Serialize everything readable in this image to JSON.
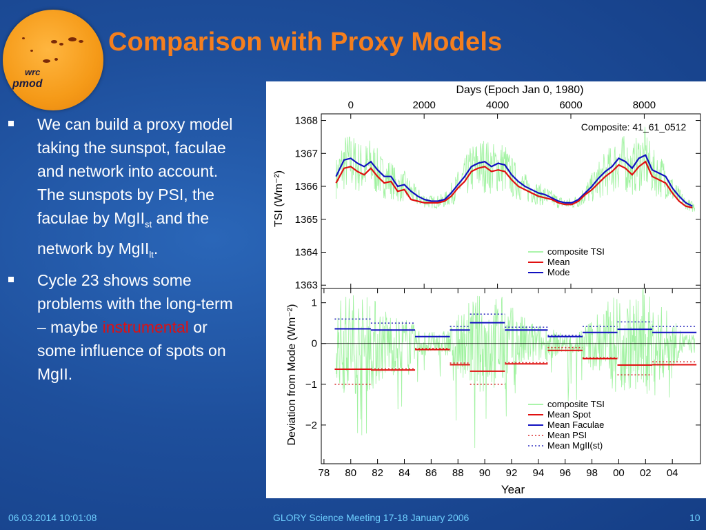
{
  "slide": {
    "title": "Comparison with Proxy Models",
    "logo_line1": "wrc",
    "logo_line2": "pmod",
    "bullet1_text": "We can build a proxy model taking the sunspot, faculae and network into account. The sunspots by PSI, the faculae by MgII",
    "bullet1_sub1": "st",
    "bullet1_mid": " and the network by MgII",
    "bullet1_sub2": "lt",
    "bullet1_end": ".",
    "bullet2_text": "Cycle 23 shows some problems with the long-term – maybe ",
    "bullet2_highlight": "instrumental",
    "bullet2_end": " or some influence of spots on MgII.",
    "footer_date": "06.03.2014 10:01:08",
    "footer_event": "GLORY Science Meeting 17-18 January 2006",
    "footer_page": "10",
    "colors": {
      "title": "#f57f1e",
      "text": "#ffffff",
      "highlight": "#e01010",
      "footer": "#6fd0ff"
    }
  },
  "chart_data": [
    {
      "type": "line",
      "panel": "top",
      "top_xlabel": "Days (Epoch Jan 0, 1980)",
      "top_ticks": [
        "0",
        "2000",
        "4000",
        "6000",
        "8000"
      ],
      "ylabel": "TSI (Wm⁻²)",
      "annotation": "Composite: 41_61_0512",
      "yticks": [
        "1368",
        "1367",
        "1366",
        "1365",
        "1364",
        "1363"
      ],
      "ylim": [
        1362.9,
        1368.2
      ],
      "xlim": [
        1977.8,
        2006.1
      ],
      "legend": [
        "composite TSI",
        "Mean",
        "Mode"
      ],
      "legend_position": "bottom-right",
      "colors": {
        "composite": "#8ef08e",
        "mean": "#e01010",
        "mode": "#1010c0"
      },
      "series": [
        {
          "name": "Mode",
          "x": [
            1978.9,
            1979.5,
            1980.0,
            1980.5,
            1981.0,
            1981.5,
            1982.0,
            1982.5,
            1983.0,
            1983.5,
            1984.0,
            1984.5,
            1985.0,
            1985.5,
            1986.0,
            1986.5,
            1987.0,
            1987.5,
            1988.0,
            1988.5,
            1989.0,
            1989.5,
            1990.0,
            1990.5,
            1991.0,
            1991.5,
            1992.0,
            1992.5,
            1993.0,
            1993.5,
            1994.0,
            1994.5,
            1995.0,
            1995.5,
            1996.0,
            1996.5,
            1997.0,
            1997.5,
            1998.0,
            1998.5,
            1999.0,
            1999.5,
            2000.0,
            2000.5,
            2001.0,
            2001.5,
            2002.0,
            2002.5,
            2003.0,
            2003.5,
            2004.0,
            2004.5,
            2005.0,
            2005.5
          ],
          "values": [
            1366.3,
            1366.8,
            1366.85,
            1366.7,
            1366.6,
            1366.75,
            1366.5,
            1366.3,
            1366.3,
            1366.0,
            1366.05,
            1365.85,
            1365.7,
            1365.6,
            1365.55,
            1365.55,
            1365.6,
            1365.8,
            1366.05,
            1366.3,
            1366.6,
            1366.7,
            1366.75,
            1366.6,
            1366.7,
            1366.65,
            1366.35,
            1366.15,
            1366.0,
            1365.9,
            1365.8,
            1365.75,
            1365.65,
            1365.55,
            1365.5,
            1365.5,
            1365.6,
            1365.8,
            1366.0,
            1366.25,
            1366.45,
            1366.6,
            1366.85,
            1366.75,
            1366.55,
            1366.85,
            1366.95,
            1366.5,
            1366.4,
            1366.3,
            1365.95,
            1365.7,
            1365.5,
            1365.4
          ]
        },
        {
          "name": "Mean",
          "x": [
            1978.9,
            1979.5,
            1980.0,
            1980.5,
            1981.0,
            1981.5,
            1982.0,
            1982.5,
            1983.0,
            1983.5,
            1984.0,
            1984.5,
            1985.0,
            1985.5,
            1986.0,
            1986.5,
            1987.0,
            1987.5,
            1988.0,
            1988.5,
            1989.0,
            1989.5,
            1990.0,
            1990.5,
            1991.0,
            1991.5,
            1992.0,
            1992.5,
            1993.0,
            1993.5,
            1994.0,
            1994.5,
            1995.0,
            1995.5,
            1996.0,
            1996.5,
            1997.0,
            1997.5,
            1998.0,
            1998.5,
            1999.0,
            1999.5,
            2000.0,
            2000.5,
            2001.0,
            2001.5,
            2002.0,
            2002.5,
            2003.0,
            2003.5,
            2004.0,
            2004.5,
            2005.0,
            2005.5
          ],
          "values": [
            1366.1,
            1366.55,
            1366.6,
            1366.45,
            1366.35,
            1366.55,
            1366.3,
            1366.1,
            1366.15,
            1365.85,
            1365.9,
            1365.6,
            1365.55,
            1365.5,
            1365.5,
            1365.5,
            1365.55,
            1365.7,
            1365.95,
            1366.15,
            1366.45,
            1366.55,
            1366.6,
            1366.45,
            1366.5,
            1366.45,
            1366.2,
            1366.0,
            1365.9,
            1365.8,
            1365.7,
            1365.65,
            1365.6,
            1365.5,
            1365.45,
            1365.45,
            1365.55,
            1365.75,
            1365.9,
            1366.1,
            1366.3,
            1366.45,
            1366.65,
            1366.55,
            1366.35,
            1366.6,
            1366.75,
            1366.3,
            1366.2,
            1366.1,
            1365.8,
            1365.55,
            1365.4,
            1365.35
          ]
        }
      ]
    },
    {
      "type": "line",
      "panel": "bottom",
      "ylabel": "Deviation from Mode (Wm⁻²)",
      "xlabel": "Year",
      "yticks": [
        "1",
        "0",
        "−1",
        "−2"
      ],
      "ylim": [
        -2.95,
        1.35
      ],
      "xlim": [
        1977.8,
        2006.1
      ],
      "xticks": [
        "78",
        "80",
        "82",
        "84",
        "86",
        "88",
        "90",
        "92",
        "94",
        "96",
        "98",
        "00",
        "02",
        "04"
      ],
      "legend": [
        "composite TSI",
        "Mean Spot",
        "Mean Faculae",
        "Mean PSI",
        "Mean MgII(st)"
      ],
      "legend_position": "bottom-right",
      "colors": {
        "composite": "#8ef08e",
        "spot": "#e01010",
        "faculae": "#1010c0",
        "psi": "#d83030",
        "mgii": "#3030c0"
      },
      "segments": [
        {
          "x0": 1978.8,
          "x1": 1981.5,
          "spot": -0.63,
          "faculae": 0.36,
          "psi": -1.0,
          "mgii": 0.6
        },
        {
          "x0": 1981.5,
          "x1": 1984.8,
          "spot": -0.65,
          "faculae": 0.33,
          "psi": -0.62,
          "mgii": 0.5
        },
        {
          "x0": 1984.8,
          "x1": 1987.4,
          "spot": -0.15,
          "faculae": 0.17,
          "psi": -0.12,
          "mgii": 0.17
        },
        {
          "x0": 1987.4,
          "x1": 1988.9,
          "spot": -0.52,
          "faculae": 0.33,
          "psi": -0.48,
          "mgii": 0.42
        },
        {
          "x0": 1988.9,
          "x1": 1991.5,
          "spot": -0.68,
          "faculae": 0.51,
          "psi": -1.0,
          "mgii": 0.72
        },
        {
          "x0": 1991.5,
          "x1": 1994.7,
          "spot": -0.5,
          "faculae": 0.33,
          "psi": -0.47,
          "mgii": 0.4
        },
        {
          "x0": 1994.7,
          "x1": 1997.3,
          "spot": -0.17,
          "faculae": 0.17,
          "psi": -0.1,
          "mgii": 0.2
        },
        {
          "x0": 1997.3,
          "x1": 1999.9,
          "spot": -0.37,
          "faculae": 0.27,
          "psi": -0.35,
          "mgii": 0.42
        },
        {
          "x0": 1999.9,
          "x1": 2002.5,
          "spot": -0.53,
          "faculae": 0.35,
          "psi": -0.77,
          "mgii": 0.53
        },
        {
          "x0": 2002.5,
          "x1": 2005.8,
          "spot": -0.52,
          "faculae": 0.27,
          "psi": -0.45,
          "mgii": 0.42
        }
      ]
    }
  ]
}
